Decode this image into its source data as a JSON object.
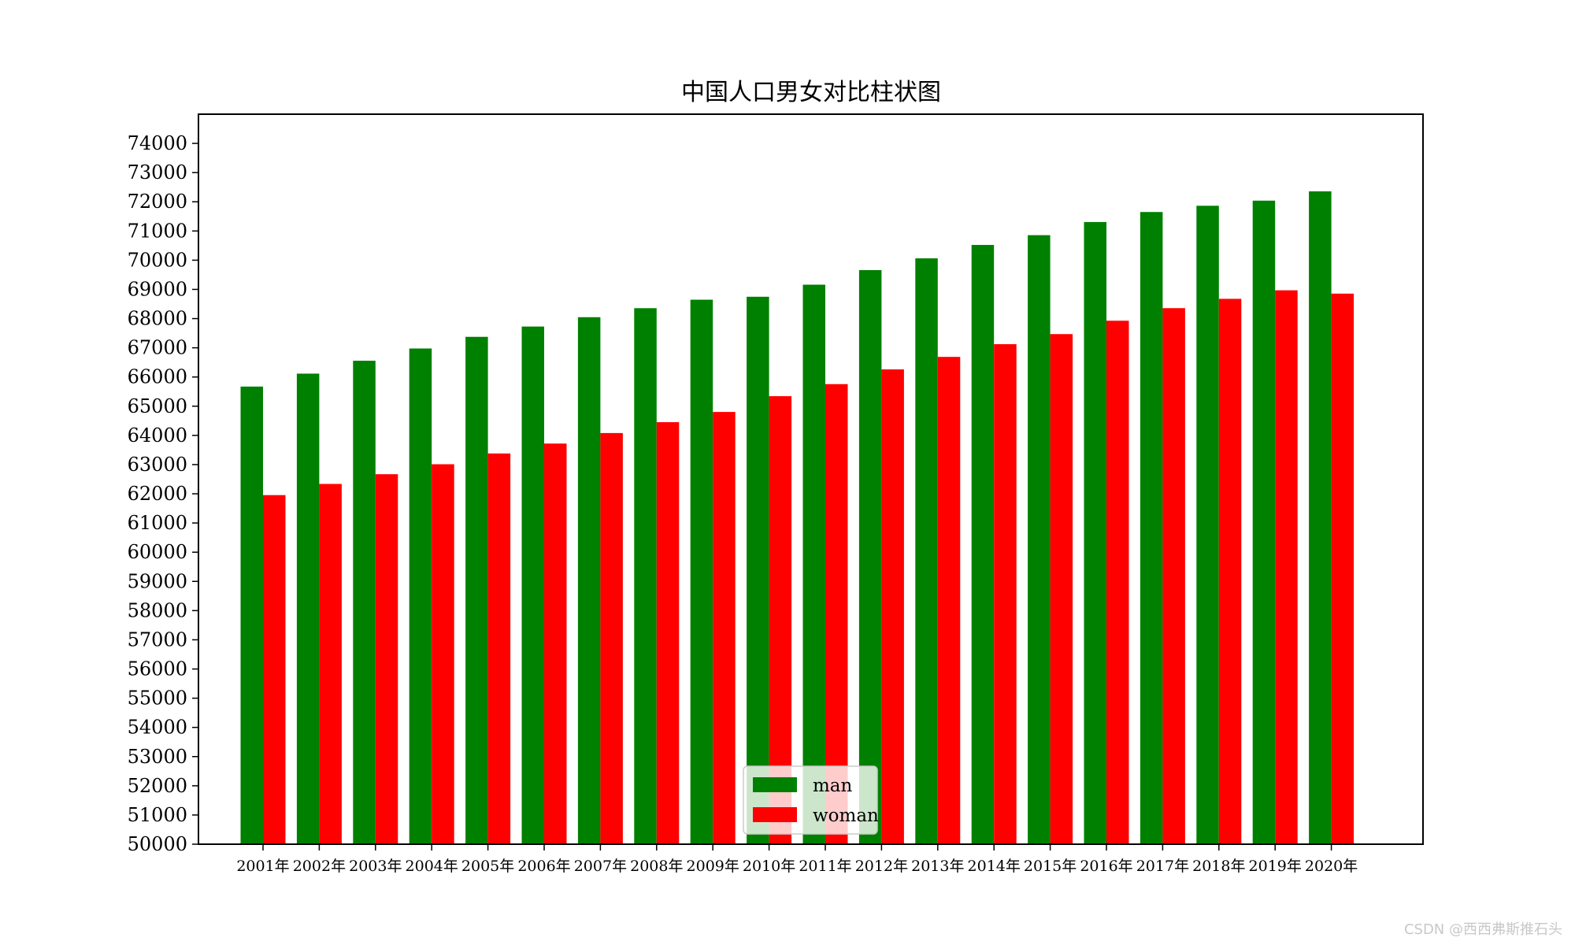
{
  "chart_data": {
    "type": "bar",
    "title": "中国人口男女对比柱状图",
    "xlabel": "",
    "ylabel": "",
    "ylim": [
      50000,
      75000
    ],
    "yticks": [
      "50000",
      "51000",
      "52000",
      "53000",
      "54000",
      "55000",
      "56000",
      "57000",
      "58000",
      "59000",
      "60000",
      "61000",
      "62000",
      "63000",
      "64000",
      "65000",
      "66000",
      "67000",
      "68000",
      "69000",
      "70000",
      "71000",
      "72000",
      "73000",
      "74000"
    ],
    "categories": [
      "2001年",
      "2002年",
      "2003年",
      "2004年",
      "2005年",
      "2006年",
      "2007年",
      "2008年",
      "2009年",
      "2010年",
      "2011年",
      "2012年",
      "2013年",
      "2014年",
      "2015年",
      "2016年",
      "2017年",
      "2018年",
      "2019年",
      "2020年"
    ],
    "series": [
      {
        "name": "man",
        "color": "#008000",
        "values": [
          65672,
          66115,
          66556,
          66976,
          67375,
          67728,
          68048,
          68357,
          68647,
          68748,
          69161,
          69660,
          70063,
          70522,
          70857,
          71307,
          71650,
          71864,
          72039,
          72357
        ]
      },
      {
        "name": "woman",
        "color": "#ff0000",
        "values": [
          61955,
          62338,
          62671,
          63012,
          63381,
          63720,
          64081,
          64453,
          64803,
          65343,
          65756,
          66260,
          66689,
          67124,
          67469,
          67927,
          68358,
          68677,
          68969,
          68855
        ]
      }
    ],
    "grid": false,
    "legend": "lower center"
  },
  "watermark": "CSDN @西西弗斯推石头"
}
